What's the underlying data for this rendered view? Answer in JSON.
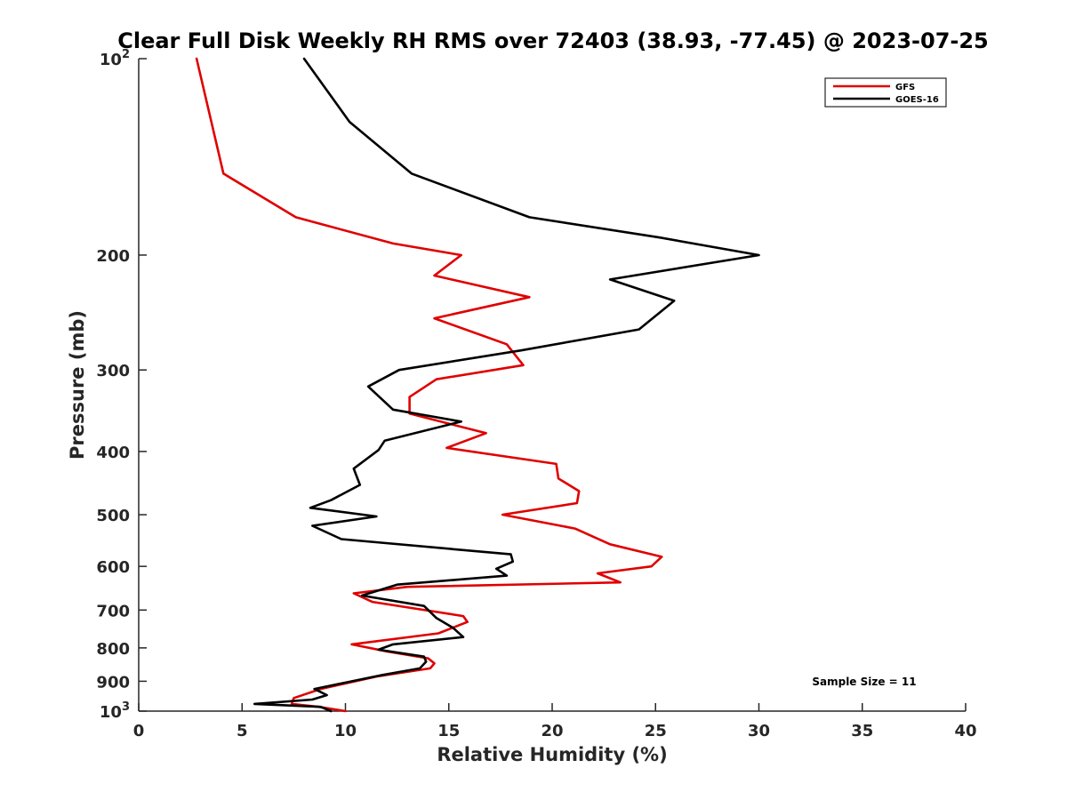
{
  "chart_data": {
    "type": "line",
    "title": "Clear Full Disk Weekly RH RMS over 72403 (38.93, -77.45) @ 2023-07-25",
    "xlabel": "Relative Humidity (%)",
    "ylabel": "Pressure (mb)",
    "xlim": [
      0,
      40
    ],
    "ylim": [
      100,
      1000
    ],
    "y_scale": "log",
    "y_reversed": true,
    "x_ticks": [
      "0",
      "5",
      "10",
      "15",
      "20",
      "25",
      "30",
      "35",
      "40"
    ],
    "y_ticks": [
      {
        "value": 100,
        "base": "10",
        "exp": "2"
      },
      {
        "value": 200,
        "label": "200"
      },
      {
        "value": 300,
        "label": "300"
      },
      {
        "value": 400,
        "label": "400"
      },
      {
        "value": 500,
        "label": "500"
      },
      {
        "value": 600,
        "label": "600"
      },
      {
        "value": 700,
        "label": "700"
      },
      {
        "value": 800,
        "label": "800"
      },
      {
        "value": 900,
        "label": "900"
      },
      {
        "value": 1000,
        "base": "10",
        "exp": "3"
      }
    ],
    "legend_position": "top-right",
    "grid": false,
    "annotation": "Sample Size = 11",
    "series": [
      {
        "name": "GFS",
        "color": "#e00000",
        "points": [
          [
            2.8,
            100
          ],
          [
            4.1,
            150
          ],
          [
            7.6,
            175
          ],
          [
            12.3,
            192
          ],
          [
            15.6,
            200
          ],
          [
            14.3,
            215
          ],
          [
            18.9,
            232
          ],
          [
            14.3,
            250
          ],
          [
            17.8,
            274
          ],
          [
            18.6,
            295
          ],
          [
            14.4,
            310
          ],
          [
            13.1,
            330
          ],
          [
            13.1,
            350
          ],
          [
            16.8,
            375
          ],
          [
            14.9,
            395
          ],
          [
            20.2,
            418
          ],
          [
            20.3,
            440
          ],
          [
            21.3,
            460
          ],
          [
            21.2,
            480
          ],
          [
            17.6,
            500
          ],
          [
            21.1,
            525
          ],
          [
            22.8,
            555
          ],
          [
            25.3,
            580
          ],
          [
            24.8,
            600
          ],
          [
            22.2,
            615
          ],
          [
            23.3,
            635
          ],
          [
            13.0,
            645
          ],
          [
            10.4,
            660
          ],
          [
            11.3,
            680
          ],
          [
            15.7,
            715
          ],
          [
            15.9,
            730
          ],
          [
            14.5,
            760
          ],
          [
            10.3,
            790
          ],
          [
            12.0,
            810
          ],
          [
            14.0,
            830
          ],
          [
            14.3,
            845
          ],
          [
            14.1,
            860
          ],
          [
            11.5,
            885
          ],
          [
            8.8,
            925
          ],
          [
            7.5,
            955
          ],
          [
            7.4,
            975
          ],
          [
            8.7,
            985
          ],
          [
            10.0,
            1000
          ]
        ]
      },
      {
        "name": "GOES-16",
        "color": "#000000",
        "points": [
          [
            8.0,
            100
          ],
          [
            10.2,
            125
          ],
          [
            13.2,
            150
          ],
          [
            18.9,
            175
          ],
          [
            25.2,
            188
          ],
          [
            30.0,
            200
          ],
          [
            22.8,
            218
          ],
          [
            25.9,
            235
          ],
          [
            24.2,
            260
          ],
          [
            18.5,
            280
          ],
          [
            12.6,
            300
          ],
          [
            11.1,
            318
          ],
          [
            12.3,
            345
          ],
          [
            15.6,
            360
          ],
          [
            11.9,
            385
          ],
          [
            11.6,
            398
          ],
          [
            10.4,
            425
          ],
          [
            10.7,
            450
          ],
          [
            9.3,
            475
          ],
          [
            8.3,
            488
          ],
          [
            11.5,
            503
          ],
          [
            8.4,
            520
          ],
          [
            9.8,
            545
          ],
          [
            18.0,
            575
          ],
          [
            18.1,
            590
          ],
          [
            17.3,
            605
          ],
          [
            17.8,
            620
          ],
          [
            12.5,
            640
          ],
          [
            10.8,
            665
          ],
          [
            13.8,
            690
          ],
          [
            14.4,
            720
          ],
          [
            15.2,
            745
          ],
          [
            15.7,
            770
          ],
          [
            12.3,
            790
          ],
          [
            11.6,
            805
          ],
          [
            13.8,
            825
          ],
          [
            13.9,
            840
          ],
          [
            13.6,
            860
          ],
          [
            11.8,
            880
          ],
          [
            8.5,
            925
          ],
          [
            9.1,
            945
          ],
          [
            8.4,
            960
          ],
          [
            5.6,
            975
          ],
          [
            8.8,
            985
          ],
          [
            9.3,
            1000
          ]
        ]
      }
    ]
  }
}
